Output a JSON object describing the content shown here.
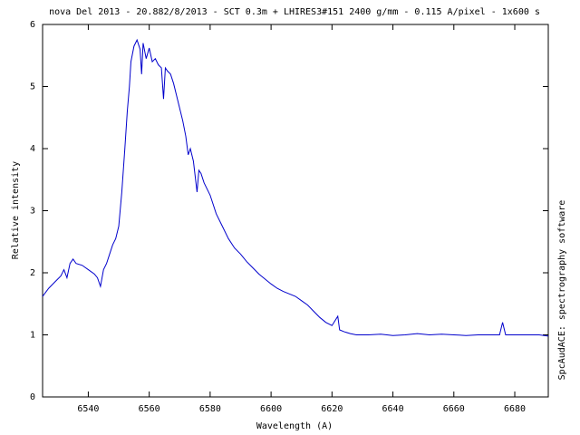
{
  "chart_data": {
    "type": "line",
    "title": "nova Del 2013 - 20.882/8/2013 - SCT 0.3m + LHIRES3#151 2400 g/mm - 0.115 A/pixel - 1x600 s",
    "x_label": "Wavelength (A)",
    "y_label": "Relative intensity",
    "annotation": "SpcAudACE: spectrography software",
    "color": "#0000cc",
    "x": [
      6525,
      6527,
      6529,
      6531,
      6532,
      6533,
      6534,
      6535,
      6536,
      6538,
      6540,
      6542,
      6543,
      6544,
      6545,
      6546,
      6547,
      6548,
      6549,
      6550,
      6551,
      6552,
      6552.8,
      6553.5,
      6554,
      6555,
      6556,
      6557,
      6557.5,
      6558,
      6559,
      6560,
      6561,
      6562,
      6563,
      6564,
      6564.7,
      6565.3,
      6566,
      6567,
      6568,
      6569,
      6570,
      6571,
      6572,
      6572.8,
      6573.5,
      6574.5,
      6575.7,
      6576.3,
      6577,
      6578,
      6580,
      6582,
      6584,
      6586,
      6588,
      6590,
      6592,
      6594,
      6596,
      6598,
      6600,
      6602,
      6604,
      6606,
      6608,
      6610,
      6612,
      6614,
      6616,
      6618,
      6620,
      6621.9,
      6622.5,
      6624,
      6626,
      6628,
      6632,
      6636,
      6640,
      6644,
      6648,
      6652,
      6656,
      6660,
      6664,
      6668,
      6672,
      6675,
      6676,
      6677,
      6680,
      6684,
      6688,
      6691
    ],
    "values": [
      1.62,
      1.75,
      1.85,
      1.95,
      2.05,
      1.92,
      2.15,
      2.22,
      2.15,
      2.12,
      2.05,
      1.98,
      1.92,
      1.78,
      2.05,
      2.15,
      2.3,
      2.45,
      2.55,
      2.75,
      3.3,
      4.0,
      4.6,
      5.0,
      5.4,
      5.65,
      5.75,
      5.6,
      5.2,
      5.7,
      5.45,
      5.62,
      5.4,
      5.45,
      5.35,
      5.3,
      4.8,
      5.3,
      5.25,
      5.2,
      5.05,
      4.85,
      4.65,
      4.45,
      4.2,
      3.9,
      4.0,
      3.8,
      3.3,
      3.65,
      3.6,
      3.45,
      3.25,
      2.95,
      2.75,
      2.55,
      2.4,
      2.3,
      2.18,
      2.08,
      1.98,
      1.9,
      1.82,
      1.75,
      1.7,
      1.66,
      1.62,
      1.55,
      1.48,
      1.38,
      1.28,
      1.2,
      1.15,
      1.3,
      1.08,
      1.05,
      1.02,
      1.0,
      1.0,
      1.01,
      0.99,
      1.0,
      1.02,
      1.0,
      1.01,
      1.0,
      0.99,
      1.0,
      1.0,
      1.0,
      1.2,
      1.0,
      1.0,
      1.0,
      1.0,
      0.98
    ],
    "xlim": [
      6525,
      6691
    ],
    "ylim": [
      0,
      6
    ],
    "xticks": [
      6540,
      6560,
      6580,
      6600,
      6620,
      6640,
      6660,
      6680
    ],
    "yticks": [
      0,
      1,
      2,
      3,
      4,
      5,
      6
    ]
  }
}
